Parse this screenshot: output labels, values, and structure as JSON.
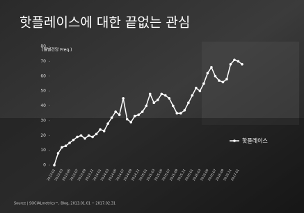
{
  "chart_data": {
    "type": "line",
    "title": "핫플레이스에 대한 끝없는 관심",
    "y_label": "(월별건당 Freq.)",
    "source": "Source | SOCIALmetrics™, Blog, 2013.01.01 ~ 2017.02.31",
    "categories": [
      "2013.01",
      null,
      "2013.03",
      null,
      "2013.05",
      null,
      "2013.07",
      null,
      "2013.09",
      null,
      "2013.11",
      null,
      "2014.01",
      null,
      "2014.03",
      null,
      "2014.05",
      null,
      "2014.07",
      null,
      "2014.09",
      null,
      "2014.11",
      null,
      "2015.01",
      null,
      "2015.03",
      null,
      "2015.05",
      null,
      "2015.07",
      null,
      "2015.09",
      null,
      "2015.11",
      null,
      "2016.01",
      null,
      "2016.03",
      null,
      "2016.05",
      null,
      "2016.07",
      null,
      "2016.09",
      null,
      "2016.11",
      null,
      "2017.01",
      null
    ],
    "series": [
      {
        "name": "핫플레이스",
        "color": "#ffffff",
        "values": [
          0,
          8,
          12,
          13,
          15,
          17,
          19,
          20,
          18,
          20,
          19,
          21,
          24,
          23,
          28,
          32,
          36,
          34,
          45,
          31,
          29,
          33,
          34,
          36,
          40,
          48,
          42,
          44,
          48,
          47,
          45,
          40,
          35,
          35,
          37,
          42,
          47,
          52,
          50,
          55,
          62,
          66,
          60,
          57,
          56,
          58,
          68,
          71,
          70,
          68
        ]
      }
    ],
    "ylim": [
      0,
      80
    ],
    "yticks": [
      0,
      10,
      20,
      30,
      40,
      50,
      60,
      70,
      80
    ]
  }
}
